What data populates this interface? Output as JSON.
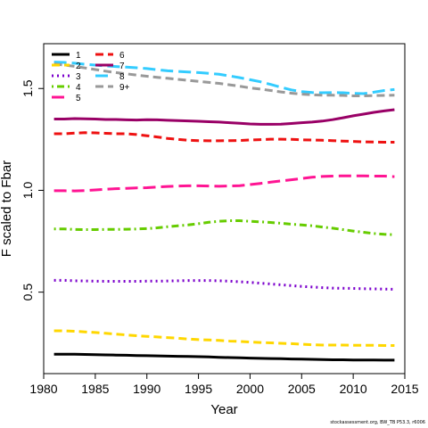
{
  "chart_data": {
    "type": "line",
    "xlabel": "Year",
    "ylabel": "F scaled to Fbar",
    "xlim": [
      1980,
      2015
    ],
    "ylim": [
      0.1,
      1.72
    ],
    "xticks": [
      1980,
      1985,
      1990,
      1995,
      2000,
      2005,
      2010,
      2015
    ],
    "yticks": [
      0.5,
      1.0,
      1.5
    ],
    "ytick_labels": [
      "0.5",
      "1.0",
      "1.5"
    ],
    "grid": false,
    "legend_position": "top-left",
    "x": [
      1981,
      1982,
      1983,
      1984,
      1985,
      1986,
      1987,
      1988,
      1989,
      1990,
      1991,
      1992,
      1993,
      1994,
      1995,
      1996,
      1997,
      1998,
      1999,
      2000,
      2001,
      2002,
      2003,
      2004,
      2005,
      2006,
      2007,
      2008,
      2009,
      2010,
      2011,
      2012,
      2013,
      2014
    ],
    "series": [
      {
        "name": "1",
        "color": "#000000",
        "dash": "solid",
        "values": [
          0.195,
          0.195,
          0.195,
          0.194,
          0.193,
          0.192,
          0.191,
          0.19,
          0.189,
          0.188,
          0.187,
          0.186,
          0.185,
          0.184,
          0.183,
          0.182,
          0.18,
          0.179,
          0.178,
          0.176,
          0.175,
          0.174,
          0.173,
          0.172,
          0.171,
          0.17,
          0.169,
          0.168,
          0.168,
          0.167,
          0.167,
          0.167,
          0.166,
          0.166
        ]
      },
      {
        "name": "2",
        "color": "#FFD700",
        "dash": "dashed",
        "values": [
          0.31,
          0.31,
          0.308,
          0.305,
          0.302,
          0.298,
          0.294,
          0.29,
          0.286,
          0.283,
          0.28,
          0.277,
          0.274,
          0.27,
          0.267,
          0.265,
          0.263,
          0.26,
          0.258,
          0.255,
          0.253,
          0.251,
          0.249,
          0.247,
          0.244,
          0.242,
          0.24,
          0.24,
          0.24,
          0.239,
          0.239,
          0.239,
          0.238,
          0.238
        ]
      },
      {
        "name": "3",
        "color": "#7B00CC",
        "dash": "dotted",
        "values": [
          0.558,
          0.558,
          0.556,
          0.555,
          0.554,
          0.553,
          0.553,
          0.553,
          0.553,
          0.554,
          0.554,
          0.555,
          0.556,
          0.557,
          0.557,
          0.557,
          0.556,
          0.554,
          0.551,
          0.548,
          0.544,
          0.54,
          0.536,
          0.532,
          0.528,
          0.525,
          0.522,
          0.52,
          0.519,
          0.518,
          0.517,
          0.516,
          0.515,
          0.514
        ]
      },
      {
        "name": "4",
        "color": "#66CC00",
        "dash": "dashdot",
        "values": [
          0.81,
          0.81,
          0.808,
          0.807,
          0.807,
          0.808,
          0.808,
          0.809,
          0.81,
          0.812,
          0.816,
          0.821,
          0.826,
          0.83,
          0.836,
          0.843,
          0.848,
          0.851,
          0.851,
          0.848,
          0.845,
          0.842,
          0.838,
          0.834,
          0.83,
          0.826,
          0.82,
          0.814,
          0.807,
          0.8,
          0.794,
          0.788,
          0.784,
          0.782
        ]
      },
      {
        "name": "5",
        "color": "#FF1493",
        "dash": "longdash",
        "values": [
          0.998,
          0.998,
          0.997,
          0.999,
          1.002,
          1.005,
          1.008,
          1.01,
          1.012,
          1.013,
          1.016,
          1.019,
          1.021,
          1.022,
          1.022,
          1.021,
          1.02,
          1.021,
          1.023,
          1.028,
          1.034,
          1.04,
          1.046,
          1.052,
          1.058,
          1.064,
          1.068,
          1.07,
          1.071,
          1.071,
          1.071,
          1.07,
          1.07,
          1.067
        ]
      },
      {
        "name": "6",
        "color": "#EE1111",
        "dash": "dashed",
        "values": [
          1.278,
          1.278,
          1.281,
          1.283,
          1.282,
          1.28,
          1.278,
          1.278,
          1.274,
          1.268,
          1.262,
          1.255,
          1.25,
          1.246,
          1.244,
          1.243,
          1.243,
          1.244,
          1.245,
          1.247,
          1.249,
          1.251,
          1.251,
          1.25,
          1.248,
          1.247,
          1.246,
          1.244,
          1.242,
          1.24,
          1.238,
          1.237,
          1.236,
          1.236
        ]
      },
      {
        "name": "7",
        "color": "#990066",
        "dash": "solid",
        "values": [
          1.35,
          1.35,
          1.352,
          1.351,
          1.35,
          1.348,
          1.348,
          1.346,
          1.345,
          1.347,
          1.346,
          1.344,
          1.342,
          1.341,
          1.339,
          1.337,
          1.335,
          1.332,
          1.329,
          1.326,
          1.324,
          1.324,
          1.325,
          1.328,
          1.332,
          1.335,
          1.34,
          1.347,
          1.356,
          1.366,
          1.374,
          1.383,
          1.39,
          1.396
        ]
      },
      {
        "name": "8",
        "color": "#33CCFF",
        "dash": "longdash",
        "values": [
          1.63,
          1.628,
          1.624,
          1.619,
          1.615,
          1.611,
          1.608,
          1.605,
          1.602,
          1.598,
          1.592,
          1.587,
          1.584,
          1.581,
          1.578,
          1.574,
          1.57,
          1.562,
          1.553,
          1.543,
          1.533,
          1.52,
          1.506,
          1.493,
          1.485,
          1.48,
          1.479,
          1.48,
          1.479,
          1.476,
          1.475,
          1.482,
          1.49,
          1.495
        ]
      },
      {
        "name": "9+",
        "color": "#999999",
        "dash": "dashed",
        "values": [
          1.62,
          1.615,
          1.609,
          1.601,
          1.593,
          1.585,
          1.578,
          1.572,
          1.566,
          1.56,
          1.555,
          1.55,
          1.545,
          1.54,
          1.535,
          1.53,
          1.525,
          1.518,
          1.511,
          1.503,
          1.497,
          1.49,
          1.483,
          1.477,
          1.472,
          1.469,
          1.467,
          1.467,
          1.466,
          1.464,
          1.464,
          1.465,
          1.466,
          1.467
        ]
      }
    ],
    "source_note": "stockassessment.org, BW_TB P53.3, r6006"
  }
}
